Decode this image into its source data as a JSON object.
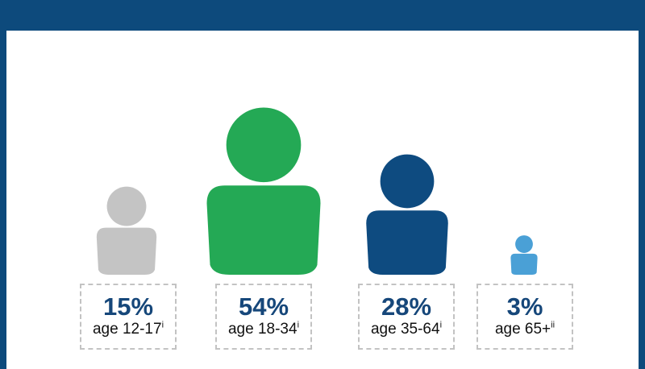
{
  "chart_data": {
    "type": "pictograph",
    "categories": [
      "age 12-17",
      "age 18-34",
      "age 35-64",
      "age 65+"
    ],
    "values": [
      15,
      54,
      28,
      3
    ],
    "value_labels": [
      "15%",
      "54%",
      "28%",
      "3%"
    ],
    "footnote_marks": [
      "i",
      "i",
      "i",
      "ii"
    ],
    "colors": [
      "#c4c4c4",
      "#24a955",
      "#0e4b80",
      "#4aa0d6"
    ],
    "title": "",
    "xlabel": "",
    "ylabel": ""
  },
  "colors": {
    "frame": "#0d4a7c",
    "percent_text": "#16477a",
    "label_border": "#c3c3c3"
  }
}
